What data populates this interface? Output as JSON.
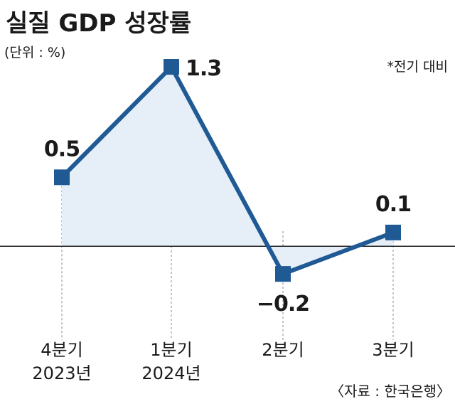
{
  "chart_data": {
    "type": "line",
    "title": "실질 GDP 성장률",
    "unit_label": "(단위 : %)",
    "note": "*전기 대비",
    "source": "〈자료 : 한국은행〉",
    "categories": [
      [
        "4분기",
        "2023년"
      ],
      [
        "1분기",
        "2024년"
      ],
      [
        "2분기",
        ""
      ],
      [
        "3분기",
        ""
      ]
    ],
    "values": [
      0.5,
      1.3,
      -0.2,
      0.1
    ],
    "value_labels": [
      "0.5",
      "1.3",
      "−0.2",
      "0.1"
    ],
    "ylim": [
      -0.22,
      1.3
    ],
    "grid": false,
    "colors": {
      "line": "#1f5a94",
      "fill": "#e6eef8",
      "zero_line": "#222222",
      "guide": "#888888"
    }
  }
}
